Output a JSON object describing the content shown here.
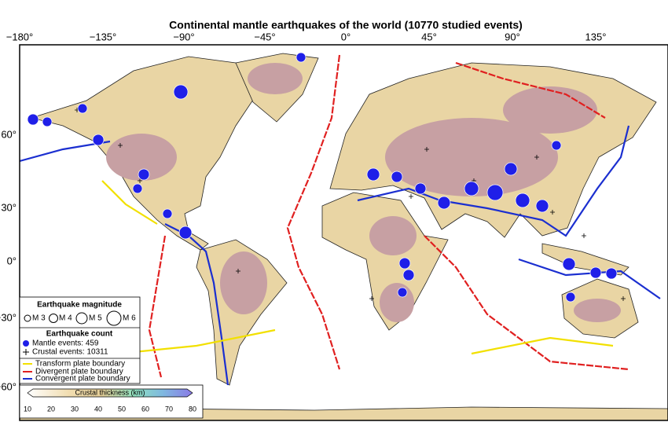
{
  "title": "Continental mantle earthquakes of the world (10770 studied events)",
  "axes": {
    "longitude": [
      "−180°",
      "−135°",
      "−90°",
      "−45°",
      "0°",
      "45°",
      "90°",
      "135°"
    ],
    "latitude": [
      "60°",
      "30°",
      "0°",
      "−30°",
      "−60°"
    ]
  },
  "legend": {
    "magnitude_title": "Earthquake magnitude",
    "magnitudes": [
      "M 3",
      "M 4",
      "M 5",
      "M 6"
    ],
    "count_title": "Earthquake count",
    "counts": [
      "Mantle events: 459",
      "Crustal events: 10311"
    ],
    "boundaries": [
      "Transform plate boundary",
      "Divergent plate boundary",
      "Convergent plate boundary"
    ]
  },
  "colorbar": {
    "label": "Crustal thickness (km)",
    "ticks": [
      "10",
      "20",
      "30",
      "40",
      "50",
      "60",
      "70",
      "80"
    ]
  }
}
